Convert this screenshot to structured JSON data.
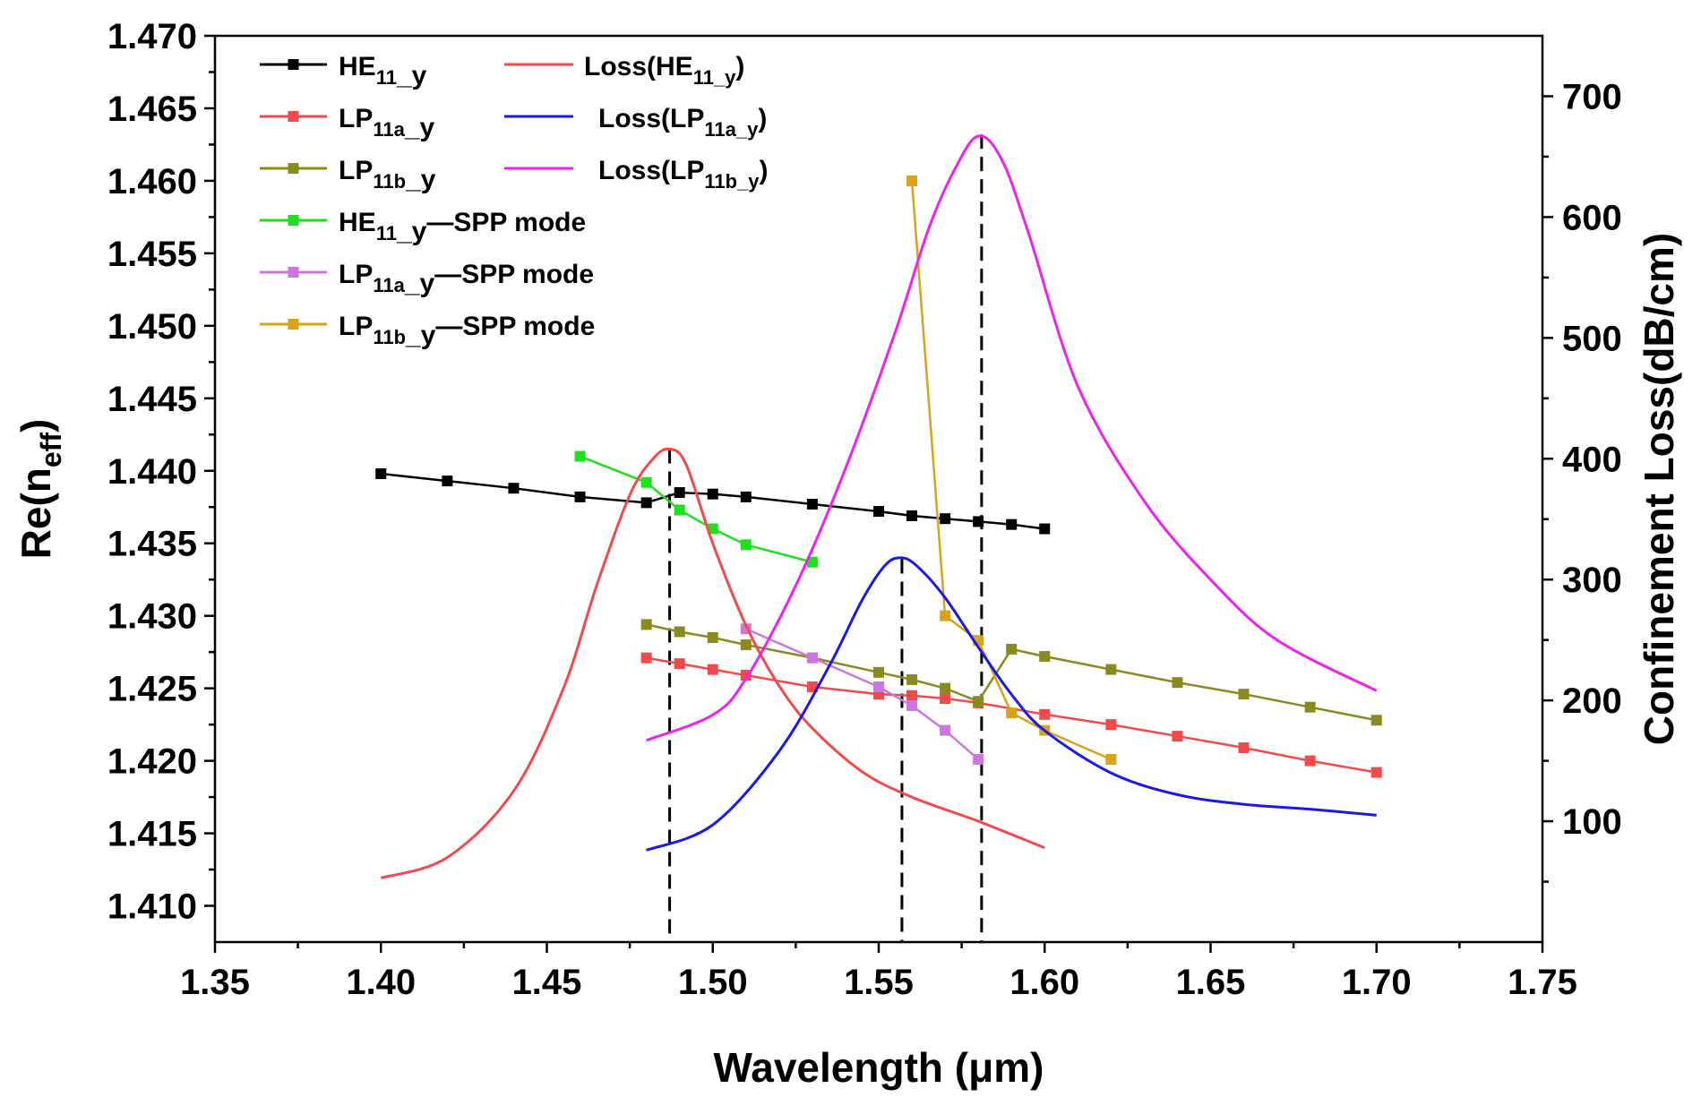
{
  "chart_data": {
    "type": "line",
    "xlabel": "Wavelength (μm)",
    "ylabel": "Re(n_eff)",
    "ylabel_base": "Re(n",
    "ylabel_sub": "eff",
    "ylabel_close": ")",
    "y2label": "Confinement Loss(dB/cm)",
    "xlim": [
      1.35,
      1.75
    ],
    "ylim": [
      1.4075,
      1.47
    ],
    "y2lim": [
      0,
      750
    ],
    "x_ticks": [
      "1.35",
      "1.40",
      "1.45",
      "1.50",
      "1.55",
      "1.60",
      "1.65",
      "1.70",
      "1.75"
    ],
    "y_ticks": [
      "1.410",
      "1.415",
      "1.420",
      "1.425",
      "1.430",
      "1.435",
      "1.440",
      "1.445",
      "1.450",
      "1.455",
      "1.460",
      "1.465",
      "1.470"
    ],
    "y2_ticks": [
      "100",
      "200",
      "300",
      "400",
      "500",
      "600",
      "700"
    ],
    "series": [
      {
        "name": "HE11_y",
        "base": "HE",
        "sub": "11",
        "suffix": "_y",
        "tail": "",
        "color": "#000000",
        "axis": "left",
        "style": "line-marker",
        "x": [
          1.4,
          1.42,
          1.44,
          1.46,
          1.48,
          1.49,
          1.5,
          1.51,
          1.53,
          1.55,
          1.56,
          1.57,
          1.58,
          1.59,
          1.6
        ],
        "y": [
          1.4398,
          1.4393,
          1.4388,
          1.4382,
          1.4378,
          1.4385,
          1.4384,
          1.4382,
          1.4377,
          1.4372,
          1.4369,
          1.4367,
          1.4365,
          1.4363,
          1.436
        ]
      },
      {
        "name": "LP11a_y",
        "base": "LP",
        "sub": "11a",
        "suffix": "_y",
        "tail": "",
        "color": "#f24a4a",
        "axis": "left",
        "style": "line-marker",
        "x": [
          1.48,
          1.49,
          1.5,
          1.51,
          1.53,
          1.55,
          1.56,
          1.57,
          1.58,
          1.6,
          1.62,
          1.64,
          1.66,
          1.68,
          1.7
        ],
        "y": [
          1.4271,
          1.4267,
          1.4263,
          1.4259,
          1.4251,
          1.4246,
          1.4245,
          1.4243,
          1.424,
          1.4232,
          1.4225,
          1.4217,
          1.4209,
          1.42,
          1.4192
        ]
      },
      {
        "name": "LP11b_y",
        "base": "LP",
        "sub": "11b",
        "suffix": "_y",
        "tail": "",
        "color": "#8a8a1e",
        "axis": "left",
        "style": "line-marker",
        "x": [
          1.48,
          1.49,
          1.5,
          1.51,
          1.53,
          1.55,
          1.56,
          1.57,
          1.58,
          1.59,
          1.6,
          1.62,
          1.64,
          1.66,
          1.68,
          1.7
        ],
        "y": [
          1.4294,
          1.4289,
          1.4285,
          1.428,
          1.4271,
          1.4261,
          1.4256,
          1.425,
          1.4241,
          1.4277,
          1.4272,
          1.4263,
          1.4254,
          1.4246,
          1.4237,
          1.4228
        ]
      },
      {
        "name": "HE11_y—SPP mode",
        "base": "HE",
        "sub": "11",
        "suffix": "_y",
        "tail": "—SPP mode",
        "color": "#1ee01e",
        "axis": "left",
        "style": "line-marker",
        "x": [
          1.46,
          1.48,
          1.49,
          1.5,
          1.51,
          1.53
        ],
        "y": [
          1.441,
          1.4392,
          1.4373,
          1.436,
          1.4349,
          1.4337
        ]
      },
      {
        "name": "LP11a_y—SPP mode",
        "base": "LP",
        "sub": "11a",
        "suffix": "_y",
        "tail": "—SPP mode",
        "color": "#cc77e0",
        "axis": "left",
        "style": "line-marker",
        "x": [
          1.51,
          1.53,
          1.55,
          1.56,
          1.57,
          1.58
        ],
        "y": [
          1.4291,
          1.4271,
          1.4251,
          1.4238,
          1.4221,
          1.4201
        ]
      },
      {
        "name": "LP11b_y—SPP mode",
        "base": "LP",
        "sub": "11b",
        "suffix": "_y",
        "tail": "—SPP mode",
        "color": "#d9a21b",
        "axis": "left",
        "style": "line-marker",
        "x": [
          1.56,
          1.57,
          1.58,
          1.59,
          1.6,
          1.62
        ],
        "y": [
          1.46,
          1.43,
          1.4283,
          1.4233,
          1.4221,
          1.4201
        ]
      },
      {
        "name": "Loss(HE11_y)",
        "base": "Loss(HE",
        "sub": "11_y",
        "suffix": "",
        "tail": ")",
        "color": "#f24a4a",
        "axis": "right",
        "style": "line",
        "x": [
          1.4,
          1.42,
          1.44,
          1.455,
          1.465,
          1.475,
          1.482,
          1.487,
          1.492,
          1.5,
          1.51,
          1.52,
          1.53,
          1.545,
          1.56,
          1.58,
          1.6
        ],
        "y": [
          53,
          70,
          125,
          210,
          295,
          370,
          400,
          408,
          395,
          330,
          262,
          212,
          177,
          141,
          120,
          100,
          78
        ]
      },
      {
        "name": "Loss(LP11a_y)",
        "base": "Loss(LP",
        "sub": "11a_y",
        "suffix": "",
        "tail": ")",
        "color": "#1a1ae6",
        "axis": "right",
        "style": "line",
        "x": [
          1.48,
          1.5,
          1.52,
          1.535,
          1.545,
          1.552,
          1.557,
          1.562,
          1.57,
          1.58,
          1.59,
          1.6,
          1.62,
          1.64,
          1.66,
          1.68,
          1.7
        ],
        "y": [
          76,
          97,
          158,
          228,
          283,
          312,
          318,
          310,
          285,
          244,
          205,
          175,
          140,
          122,
          114,
          110,
          105
        ]
      },
      {
        "name": "Loss(LP11b_y)",
        "base": "Loss(LP",
        "sub": "11b_y",
        "suffix": "",
        "tail": ")",
        "color": "#ee22ee",
        "axis": "right",
        "style": "line",
        "x": [
          1.48,
          1.5,
          1.51,
          1.525,
          1.54,
          1.555,
          1.565,
          1.573,
          1.58,
          1.587,
          1.595,
          1.61,
          1.63,
          1.65,
          1.67,
          1.7
        ],
        "y": [
          167,
          188,
          218,
          295,
          392,
          505,
          590,
          640,
          667,
          648,
          588,
          460,
          365,
          300,
          250,
          208
        ]
      }
    ],
    "guides": [
      {
        "x": 1.487,
        "y": 1.4415
      },
      {
        "x": 1.557,
        "y": 1.4339
      },
      {
        "x": 1.581,
        "y": 1.4632
      }
    ],
    "legend_position": "top-left"
  }
}
